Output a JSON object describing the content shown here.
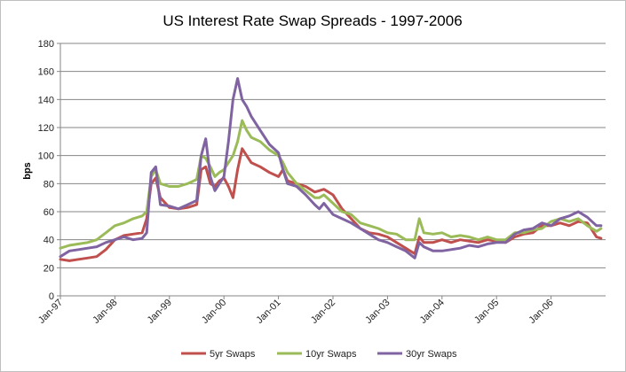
{
  "chart_data": {
    "type": "line",
    "title": "US Interest Rate Swap Spreads - 1997-2006",
    "ylabel": "bps",
    "xlabel": "",
    "ylim": [
      0,
      180
    ],
    "yticks": [
      0,
      20,
      40,
      60,
      80,
      100,
      120,
      140,
      160,
      180
    ],
    "xlim": [
      "1997-01",
      "2006-12"
    ],
    "xticks": [
      "Jan-97",
      "Jan-98",
      "Jan-99",
      "Jan-00",
      "Jan-01",
      "Jan-02",
      "Jan-03",
      "Jan-04",
      "Jan-05",
      "Jan-06"
    ],
    "grid": "horizontal",
    "legend": "bottom",
    "x": [
      "1997-01",
      "1997-03",
      "1997-05",
      "1997-07",
      "1997-09",
      "1997-11",
      "1998-01",
      "1998-03",
      "1998-05",
      "1998-07",
      "1998-08",
      "1998-09",
      "1998-10",
      "1998-11",
      "1999-01",
      "1999-03",
      "1999-05",
      "1999-07",
      "1999-08",
      "1999-09",
      "1999-10",
      "1999-11",
      "1999-12",
      "2000-01",
      "2000-02",
      "2000-03",
      "2000-04",
      "2000-05",
      "2000-06",
      "2000-07",
      "2000-09",
      "2000-11",
      "2001-01",
      "2001-02",
      "2001-03",
      "2001-05",
      "2001-07",
      "2001-09",
      "2001-10",
      "2001-11",
      "2002-01",
      "2002-03",
      "2002-05",
      "2002-07",
      "2002-09",
      "2002-11",
      "2003-01",
      "2003-03",
      "2003-05",
      "2003-07",
      "2003-08",
      "2003-09",
      "2003-11",
      "2004-01",
      "2004-03",
      "2004-05",
      "2004-07",
      "2004-09",
      "2004-11",
      "2005-01",
      "2005-03",
      "2005-05",
      "2005-07",
      "2005-09",
      "2005-11",
      "2006-01",
      "2006-03",
      "2006-05",
      "2006-07",
      "2006-09",
      "2006-11",
      "2006-12"
    ],
    "series": [
      {
        "name": "5yr Swaps",
        "color": "#c0504d",
        "values": [
          26,
          25,
          26,
          27,
          28,
          33,
          40,
          43,
          44,
          45,
          55,
          80,
          84,
          70,
          63,
          62,
          63,
          65,
          90,
          92,
          80,
          78,
          82,
          84,
          78,
          70,
          90,
          105,
          100,
          95,
          92,
          88,
          85,
          90,
          82,
          80,
          78,
          74,
          75,
          76,
          72,
          62,
          55,
          48,
          45,
          44,
          42,
          38,
          34,
          30,
          42,
          38,
          38,
          40,
          38,
          40,
          39,
          38,
          40,
          39,
          38,
          42,
          44,
          45,
          50,
          50,
          52,
          50,
          53,
          52,
          42,
          41
        ]
      },
      {
        "name": "10yr Swaps",
        "color": "#9bbb59",
        "values": [
          34,
          36,
          37,
          38,
          40,
          45,
          50,
          52,
          55,
          57,
          60,
          85,
          90,
          80,
          78,
          78,
          80,
          83,
          100,
          98,
          92,
          85,
          88,
          90,
          95,
          100,
          110,
          125,
          118,
          113,
          110,
          104,
          100,
          95,
          88,
          80,
          75,
          70,
          70,
          72,
          66,
          60,
          58,
          52,
          50,
          48,
          45,
          44,
          40,
          40,
          55,
          45,
          44,
          45,
          42,
          43,
          42,
          40,
          42,
          40,
          40,
          45,
          45,
          47,
          48,
          53,
          55,
          53,
          55,
          50,
          46,
          48
        ]
      },
      {
        "name": "30yr Swaps",
        "color": "#8064a2",
        "values": [
          28,
          32,
          33,
          34,
          35,
          38,
          40,
          42,
          40,
          41,
          45,
          88,
          92,
          65,
          64,
          62,
          65,
          68,
          100,
          112,
          85,
          75,
          80,
          85,
          110,
          140,
          155,
          140,
          135,
          128,
          118,
          108,
          102,
          90,
          80,
          78,
          72,
          65,
          62,
          66,
          58,
          55,
          52,
          48,
          44,
          40,
          38,
          35,
          32,
          27,
          38,
          35,
          32,
          32,
          33,
          34,
          36,
          35,
          37,
          38,
          38,
          44,
          47,
          48,
          52,
          50,
          55,
          57,
          60,
          56,
          50,
          50
        ]
      }
    ]
  }
}
